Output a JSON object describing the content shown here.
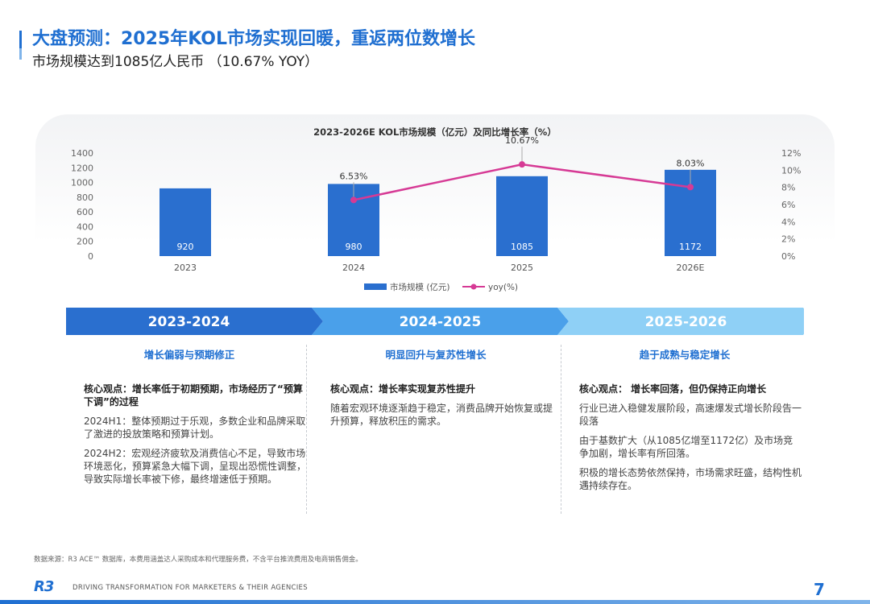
{
  "header": {
    "title": "大盘预测：2025年KOL市场实现回暖，重返两位数增长",
    "subtitle": "市场规模达到1085亿人民币 （10.67% YOY）"
  },
  "chart_data": {
    "type": "bar",
    "title": "2023-2026E KOL市场规模（亿元）及同比增长率（%）",
    "categories": [
      "2023",
      "2024",
      "2025",
      "2026E"
    ],
    "series": [
      {
        "name": "市场规模 (亿元)",
        "type": "bar",
        "values": [
          920,
          980,
          1085,
          1172
        ],
        "labels": [
          "920",
          "980",
          "1085",
          "1172"
        ],
        "color": "#2a6fcf"
      },
      {
        "name": "yoy(%)",
        "type": "line",
        "values": [
          null,
          6.53,
          10.67,
          8.03
        ],
        "labels": [
          "",
          "6.53%",
          "10.67%",
          "8.03%"
        ],
        "color": "#d63a95"
      }
    ],
    "y_left": {
      "ticks": [
        "1400",
        "1200",
        "1000",
        "800",
        "600",
        "400",
        "200",
        "0"
      ],
      "min": 0,
      "max": 1400
    },
    "y_right": {
      "ticks": [
        "12%",
        "10%",
        "8%",
        "6%",
        "4%",
        "2%",
        "0%"
      ],
      "min": 0,
      "max": 12
    },
    "legend_position": "bottom",
    "grid": false
  },
  "timeline": {
    "periods": [
      "2023-2024",
      "2024-2025",
      "2025-2026"
    ],
    "colors": [
      "#2a6fcf",
      "#4aa0ea",
      "#8fd0f6"
    ]
  },
  "columns": [
    {
      "heading": "增长偏弱与预期修正",
      "core": "核心观点：增长率低于初期预期，市场经历了“预算下调”的过程",
      "paragraphs": [
        "2024H1：整体预期过于乐观，多数企业和品牌采取了激进的投放策略和预算计划。",
        "2024H2：宏观经济疲软及消费信心不足，导致市场环境恶化，预算紧急大幅下调，呈现出恐慌性调整，导致实际增长率被下修，最终增速低于预期。"
      ]
    },
    {
      "heading": "明显回升与复苏性增长",
      "core": "核心观点：增长率实现复苏性提升",
      "paragraphs": [
        "随着宏观环境逐渐趋于稳定，消费品牌开始恢复或提升预算，释放积压的需求。"
      ]
    },
    {
      "heading": "趋于成熟与稳定增长",
      "core": "核心观点： 增长率回落，但仍保持正向增长",
      "paragraphs": [
        "行业已进入稳健发展阶段，高速爆发式增长阶段告一段落",
        "由于基数扩大（从1085亿增至1172亿）及市场竞争加剧，增长率有所回落。",
        "积极的增长态势依然保持，市场需求旺盛，结构性机遇持续存在。"
      ]
    }
  ],
  "footer": {
    "source": "数据来源：R3 ACE™ 数据库，本费用涵盖达人采购成本和代理服务费，不含平台推流费用及电商销售佣金。",
    "logo": "R3",
    "tagline": "DRIVING TRANSFORMATION FOR MARKETERS & THEIR AGENCIES",
    "page_number": "7"
  }
}
